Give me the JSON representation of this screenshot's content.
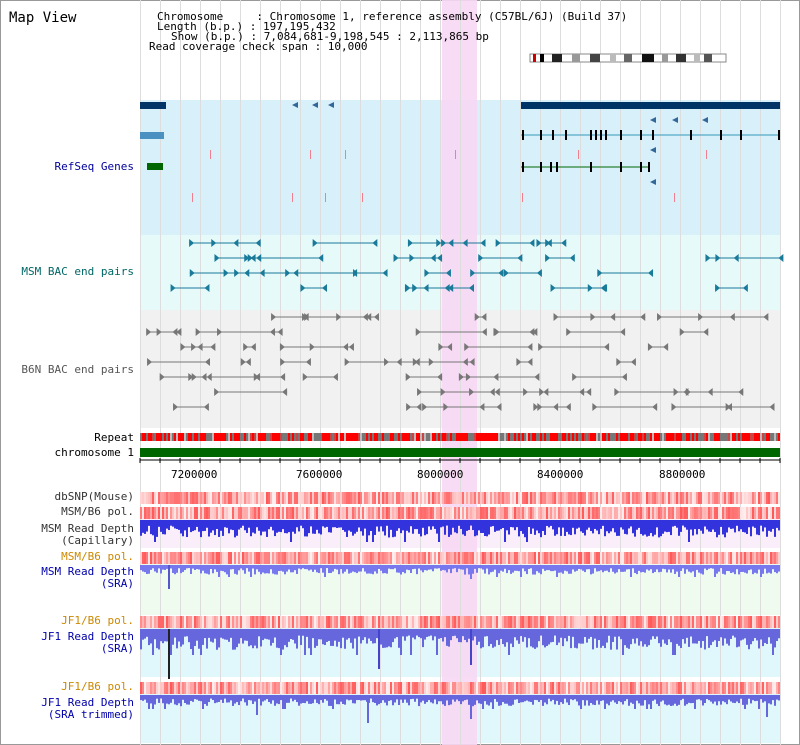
{
  "title": "Map View",
  "info": {
    "chromosome": "Chromosome     : Chromosome 1, reference assembly (C57BL/6J) (Build 37)",
    "length": "Length (b.p.) : 197,195,432",
    "show": "Show (b.p.) : 7,084,681-9,198,545 : 2,113,865 bp",
    "coverage": "Read coverage check span : 10,000"
  },
  "tracks": {
    "refseq": "RefSeq Genes",
    "msm_bac": "MSM BAC end pairs",
    "b6n_bac": "B6N BAC end pairs",
    "repeat": "Repeat",
    "chromosome": "chromosome 1",
    "dbsnp": "dbSNP(Mouse)",
    "msm_b6_pol_1": "MSM/B6 pol.",
    "msm_depth_cap_1": "MSM Read Depth",
    "msm_depth_cap_2": "(Capillary)",
    "msm_b6_pol_2": "MSM/B6 pol.",
    "msm_depth_sra_1": "MSM Read Depth",
    "msm_depth_sra_2": "(SRA)",
    "jf1_b6_pol_1": "JF1/B6 pol.",
    "jf1_depth_sra_1": "JF1 Read Depth",
    "jf1_depth_sra_2": "(SRA)",
    "jf1_b6_pol_2": "JF1/B6 pol.",
    "jf1_depth_trim_1": "JF1 Read Depth",
    "jf1_depth_trim_2": "(SRA trimmed)"
  },
  "axis": {
    "ticks": [
      "7200000",
      "7600000",
      "8000000",
      "8400000",
      "8800000"
    ]
  },
  "colors": {
    "refseq_label": "#000099",
    "msm_label": "#006666",
    "b6n_label": "#555555",
    "pol_label": "#cc8800",
    "depth_label": "#0000aa",
    "highlight": "#f7d7f3",
    "chromosome": "#006600"
  }
}
